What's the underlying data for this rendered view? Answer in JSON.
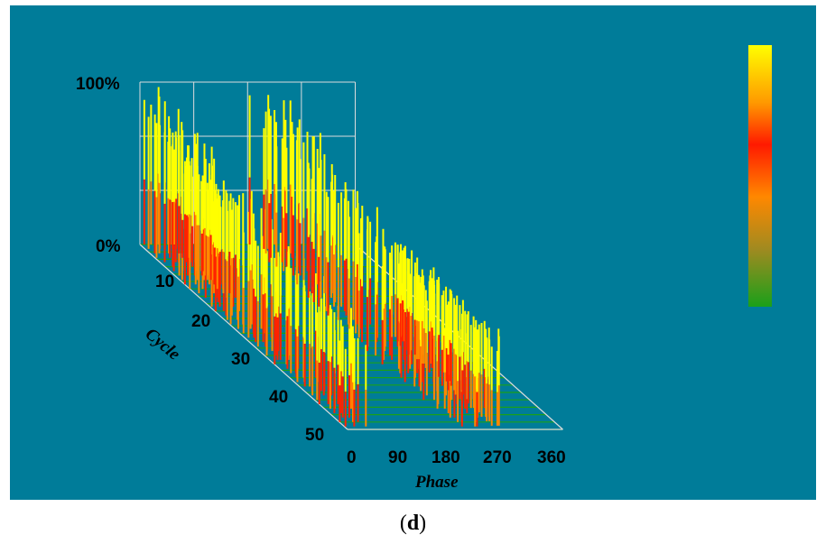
{
  "caption": {
    "open": "(",
    "letter": "d",
    "close": ")"
  },
  "chart_data": {
    "type": "bar",
    "z_axis": {
      "tick_labels": [
        "0%",
        "100%"
      ],
      "range": [
        0,
        100
      ]
    },
    "x_axis": {
      "title": "Phase",
      "tick_labels": [
        "0",
        "90",
        "180",
        "270",
        "360"
      ],
      "range": [
        0,
        360
      ]
    },
    "y_axis": {
      "title": "Cycle",
      "tick_labels": [
        "10",
        "20",
        "30",
        "40",
        "50"
      ],
      "range": [
        0,
        50
      ]
    },
    "grid": true,
    "colorbar": {
      "placement": "right",
      "colors": [
        "#ffff00",
        "#ff8800",
        "#ff2200",
        "#ff8800",
        "#1aa01a"
      ]
    },
    "colors": {
      "background": "#007c99",
      "high": "#ffff00",
      "mid": "#ff2200",
      "low": "#1aa01a",
      "grid": "#dddddd"
    },
    "series": [
      {
        "cycle_range": [
          0,
          50
        ],
        "phase_range": [
          0,
          45
        ],
        "peak_percent": [
          100,
          60
        ]
      },
      {
        "cycle_range": [
          0,
          15
        ],
        "phase_range": [
          45,
          60
        ],
        "peak_percent": [
          72,
          60
        ]
      },
      {
        "cycle_range": [
          0,
          50
        ],
        "phase_range": [
          180,
          240
        ],
        "peak_percent": [
          100,
          62
        ]
      },
      {
        "cycle_range": [
          25,
          50
        ],
        "phase_range": [
          240,
          270
        ],
        "peak_percent": [
          60,
          58
        ]
      }
    ]
  }
}
